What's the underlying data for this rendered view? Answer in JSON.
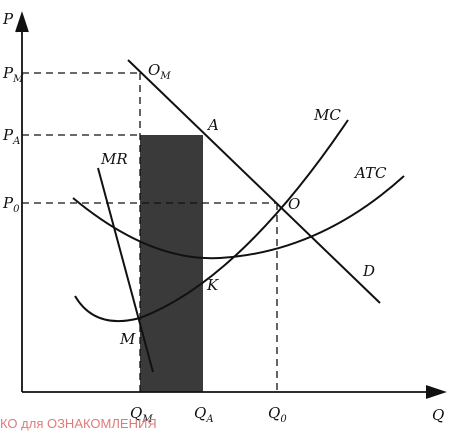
{
  "axes": {
    "y_label": "P",
    "x_label": "Q"
  },
  "price_labels": {
    "pm": {
      "main": "P",
      "sub": "M"
    },
    "pa": {
      "main": "P",
      "sub": "A"
    },
    "p0": {
      "main": "P",
      "sub": "0"
    }
  },
  "quantity_labels": {
    "qm": {
      "main": "Q",
      "sub": "M"
    },
    "qa": {
      "main": "Q",
      "sub": "A"
    },
    "q0": {
      "main": "Q",
      "sub": "0"
    }
  },
  "curve_labels": {
    "mr": "MR",
    "mc": "MC",
    "atc": "ATC",
    "d": "D"
  },
  "point_labels": {
    "om": {
      "main": "O",
      "sub": "M"
    },
    "a": "A",
    "o": "O",
    "k": "K",
    "m": "M"
  },
  "watermark": "КО для ОЗНАКОМЛЕНИЯ",
  "colors": {
    "ink": "#111111",
    "shaded_area": "#3a3a3a",
    "watermark": "#e07a7a"
  }
}
